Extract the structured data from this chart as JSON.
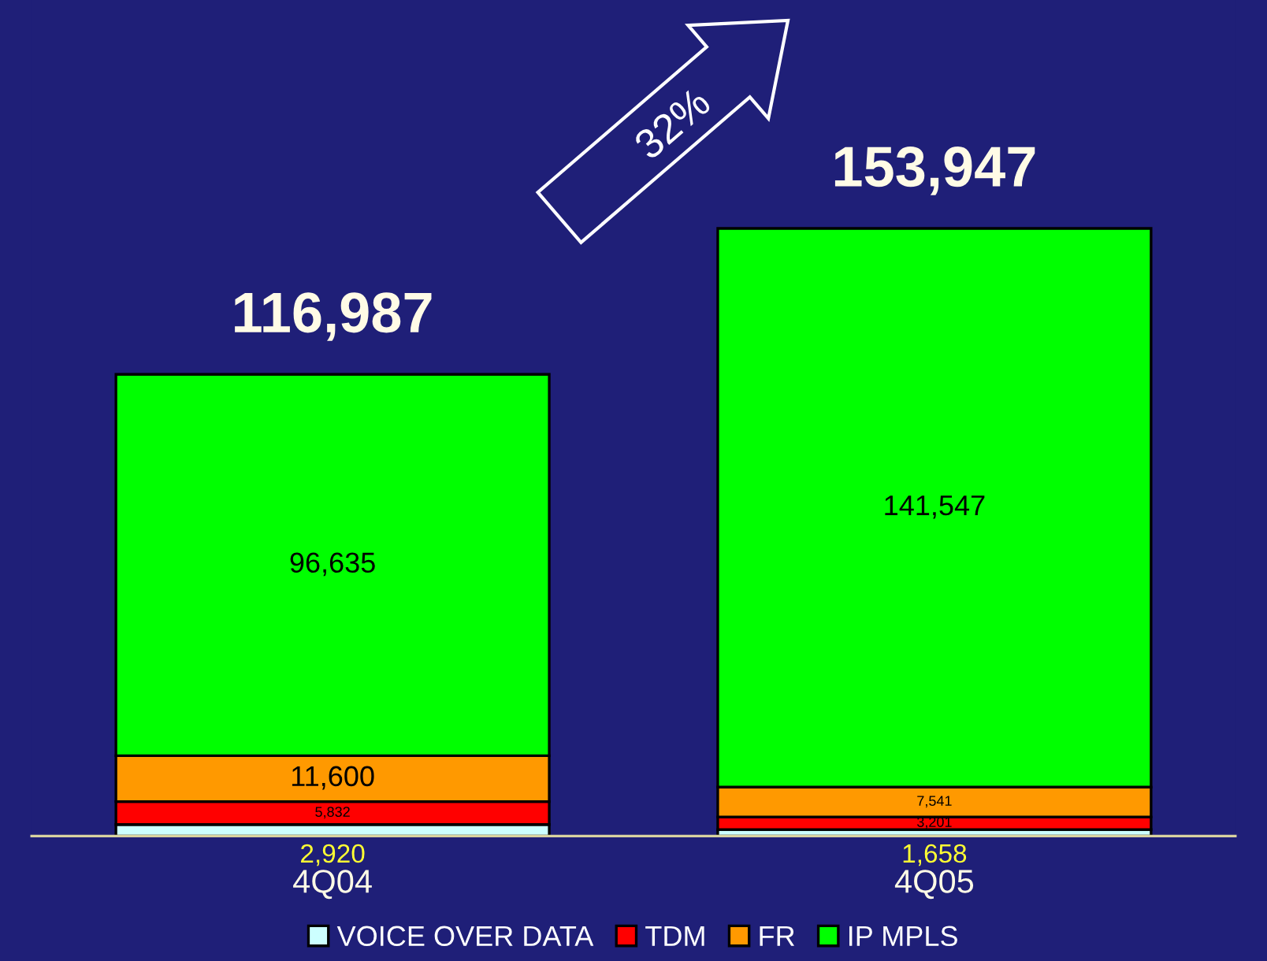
{
  "chart_data": {
    "type": "bar",
    "stacked": true,
    "categories": [
      "4Q04",
      "4Q05"
    ],
    "series": [
      {
        "name": "VOICE OVER DATA",
        "color": "#ccffff",
        "values": [
          2920,
          1658
        ],
        "value_labels": [
          "2,920",
          "1,658"
        ]
      },
      {
        "name": "TDM",
        "color": "#ff0000",
        "values": [
          5832,
          3201
        ],
        "value_labels": [
          "5,832",
          "3,201"
        ]
      },
      {
        "name": "FR",
        "color": "#ff9900",
        "values": [
          11600,
          7541
        ],
        "value_labels": [
          "11,600",
          "7,541"
        ]
      },
      {
        "name": "IP MPLS",
        "color": "#00ff00",
        "values": [
          96635,
          141547
        ],
        "value_labels": [
          "96,635",
          "141,547"
        ]
      }
    ],
    "totals": [
      "116,987",
      "153,947"
    ],
    "annotations": [
      "32%"
    ],
    "legend": "bottom",
    "grid": false
  }
}
